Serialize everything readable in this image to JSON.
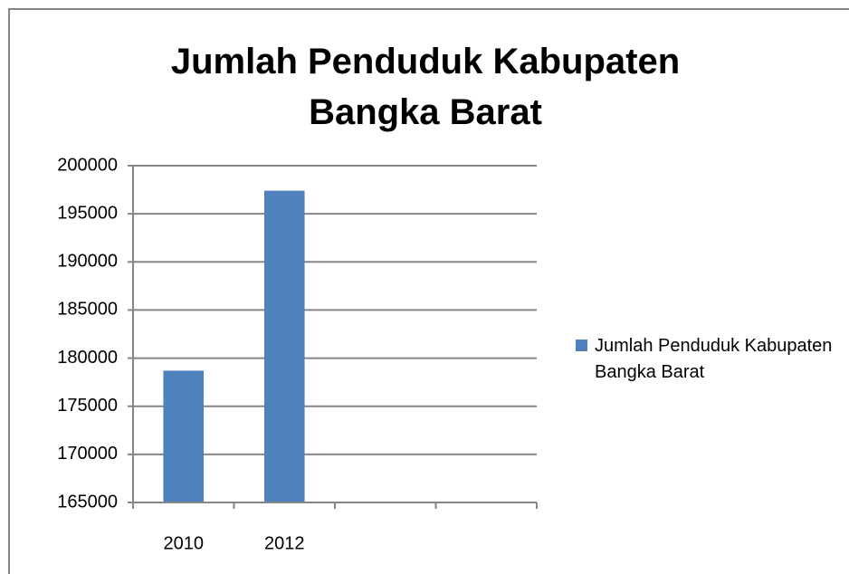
{
  "chart_data": {
    "type": "bar",
    "title": "Jumlah Penduduk Kabupaten Bangka Barat",
    "categories": [
      "2010",
      "2012",
      null,
      null
    ],
    "series": [
      {
        "name": "Jumlah Penduduk Kabupaten Bangka Barat",
        "color": "#4f81bd",
        "values": [
          178700,
          197400,
          null,
          null
        ]
      }
    ],
    "ylim": [
      165000,
      200000
    ],
    "yticks": [
      165000,
      170000,
      175000,
      180000,
      185000,
      190000,
      195000,
      200000
    ],
    "grid": true,
    "legend": "right"
  }
}
